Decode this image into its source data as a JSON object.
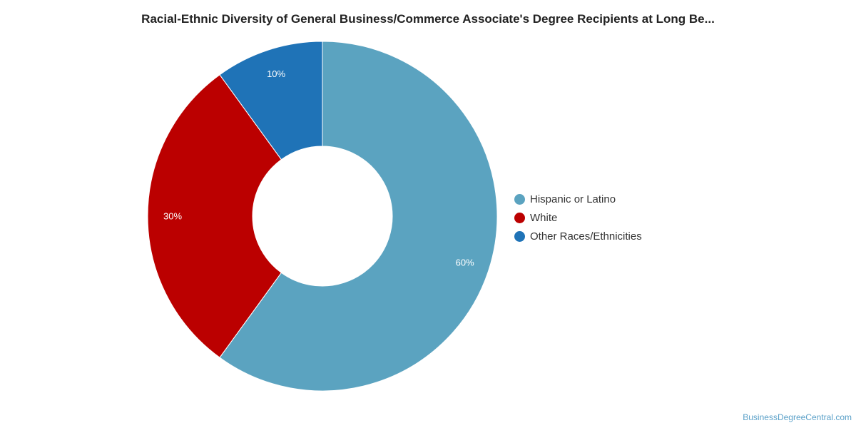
{
  "chart_data": {
    "type": "pie",
    "title": "Racial-Ethnic Diversity of General Business/Commerce Associate's Degree Recipients at Long Be...",
    "categories": [
      "Hispanic or Latino",
      "White",
      "Other Races/Ethnicities"
    ],
    "values": [
      60,
      30,
      10
    ],
    "value_labels": [
      "60%",
      "30%",
      "10%"
    ],
    "colors": [
      "#5ba3c0",
      "#bb0000",
      "#1f73b7"
    ],
    "donut": true,
    "legend_position": "right"
  },
  "watermark": "BusinessDegreeCentral.com"
}
